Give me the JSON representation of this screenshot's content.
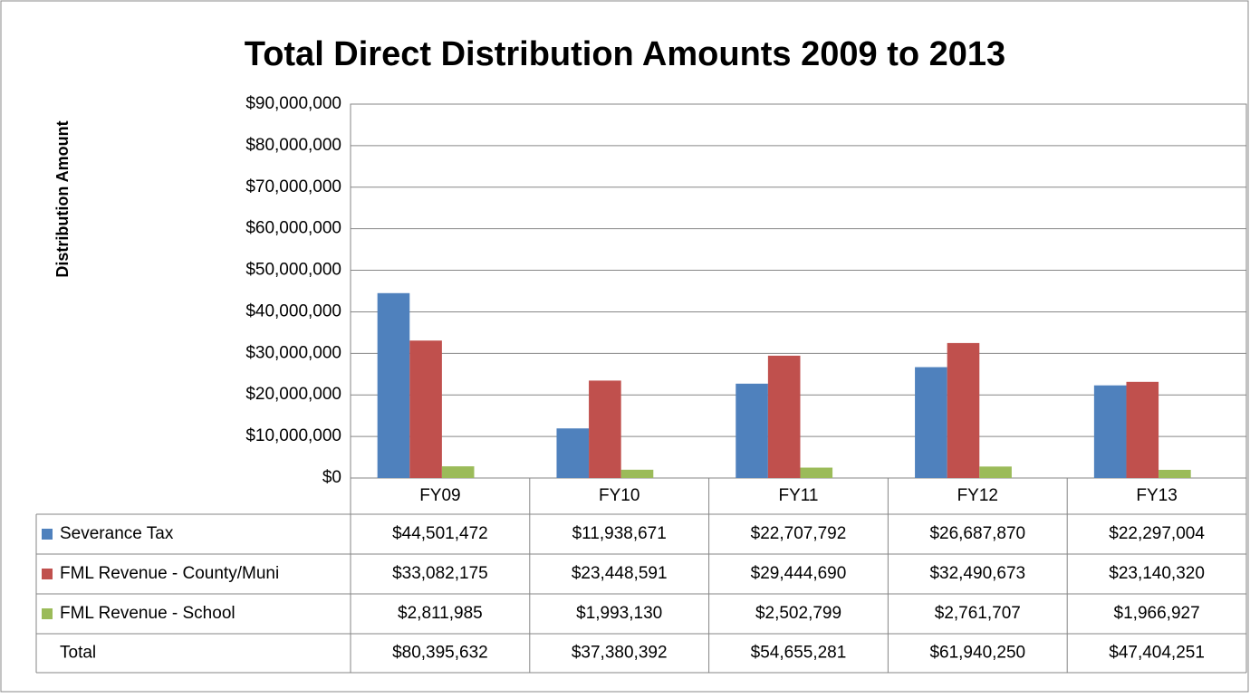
{
  "chart_data": {
    "type": "bar",
    "title": "Total Direct Distribution Amounts 2009 to 2013",
    "y_label": "Distribution Amount",
    "categories": [
      "FY09",
      "FY10",
      "FY11",
      "FY12",
      "FY13"
    ],
    "series": [
      {
        "name": "Severance Tax",
        "color": "#4f81bd",
        "values": [
          44501472,
          11938671,
          22707792,
          26687870,
          22297004
        ],
        "value_labels": [
          "$44,501,472",
          "$11,938,671",
          "$22,707,792",
          "$26,687,870",
          "$22,297,004"
        ]
      },
      {
        "name": "FML Revenue - County/Muni",
        "color": "#c0504d",
        "values": [
          33082175,
          23448591,
          29444690,
          32490673,
          23140320
        ],
        "value_labels": [
          "$33,082,175",
          "$23,448,591",
          "$29,444,690",
          "$32,490,673",
          "$23,140,320"
        ]
      },
      {
        "name": "FML Revenue - School",
        "color": "#9bbb59",
        "values": [
          2811985,
          1993130,
          2502799,
          2761707,
          1966927
        ],
        "value_labels": [
          "$2,811,985",
          "$1,993,130",
          "$2,502,799",
          "$2,761,707",
          "$1,966,927"
        ]
      }
    ],
    "total": {
      "name": "Total",
      "values": [
        80395632,
        37380392,
        54655281,
        61940250,
        47404251
      ],
      "value_labels": [
        "$80,395,632",
        "$37,380,392",
        "$54,655,281",
        "$61,940,250",
        "$47,404,251"
      ]
    },
    "ylim": [
      0,
      90000000
    ],
    "yticks": [
      {
        "value": 0,
        "label": "$0"
      },
      {
        "value": 10000000,
        "label": "$10,000,000"
      },
      {
        "value": 20000000,
        "label": "$20,000,000"
      },
      {
        "value": 30000000,
        "label": "$30,000,000"
      },
      {
        "value": 40000000,
        "label": "$40,000,000"
      },
      {
        "value": 50000000,
        "label": "$50,000,000"
      },
      {
        "value": 60000000,
        "label": "$60,000,000"
      },
      {
        "value": 70000000,
        "label": "$70,000,000"
      },
      {
        "value": 80000000,
        "label": "$80,000,000"
      },
      {
        "value": 90000000,
        "label": "$90,000,000"
      }
    ],
    "grid": true
  }
}
